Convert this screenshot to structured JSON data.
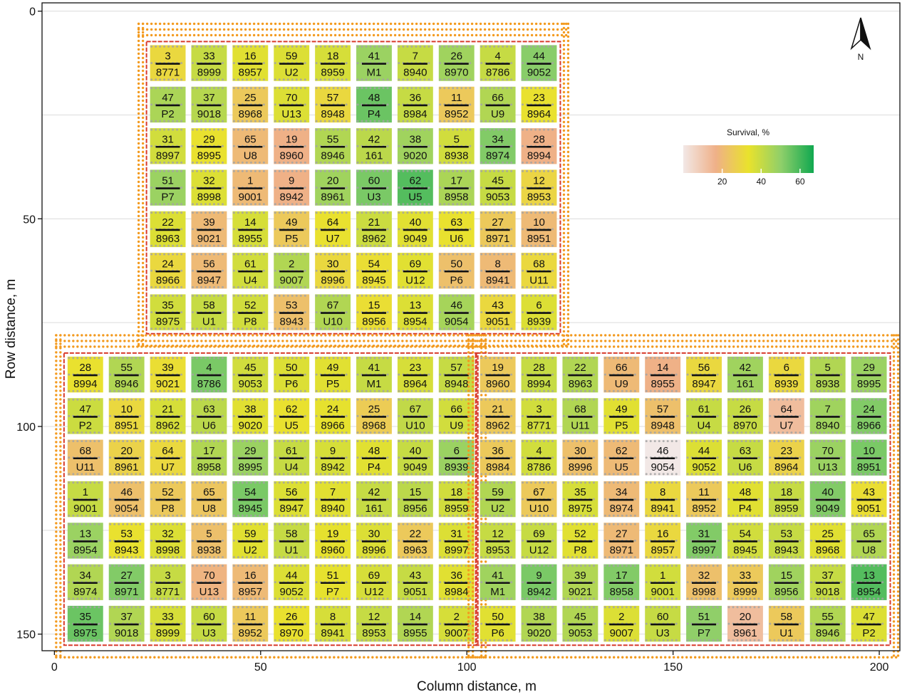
{
  "chart_data": {
    "type": "heatmap",
    "xlabel": "Column distance, m",
    "ylabel": "Row distance, m",
    "xlim": [
      -3,
      205
    ],
    "ylim": [
      -2,
      154
    ],
    "x_ticks": [
      0,
      50,
      100,
      150,
      200
    ],
    "y_ticks": [
      0,
      50,
      100,
      150
    ],
    "grid": true,
    "north_arrow_label": "N",
    "legend": {
      "title": "Survival, %",
      "ticks": [
        20,
        40,
        60
      ],
      "range": [
        0,
        67
      ],
      "placement": "top-right",
      "colors": [
        "#f2e8e6",
        "#efb088",
        "#e9e22c",
        "#8fcf6a",
        "#10a850"
      ]
    },
    "borders": {
      "guard_dots": "#f39a1e",
      "plot_line": "#d83a2a",
      "block_dots": "#a5a5a5",
      "number_rule": "#111111"
    },
    "blocks": [
      {
        "col_start": 22.5,
        "row_start": 7.5,
        "cell_w": 10,
        "cell_h": 10,
        "rows": [
          [
            [
              3,
              "8771",
              30
            ],
            [
              33,
              "8999",
              40
            ],
            [
              16,
              "8957",
              35
            ],
            [
              59,
              "U2",
              36
            ],
            [
              18,
              "8959",
              37
            ],
            [
              41,
              "M1",
              48
            ],
            [
              7,
              "8940",
              40
            ],
            [
              26,
              "8970",
              47
            ],
            [
              4,
              "8786",
              40
            ],
            [
              44,
              "9052",
              51
            ]
          ],
          [
            [
              47,
              "P2",
              45
            ],
            [
              37,
              "9018",
              43
            ],
            [
              25,
              "8968",
              25
            ],
            [
              70,
              "U13",
              36
            ],
            [
              57,
              "8948",
              30
            ],
            [
              48,
              "P4",
              55
            ],
            [
              36,
              "8984",
              40
            ],
            [
              11,
              "8952",
              25
            ],
            [
              66,
              "U9",
              44
            ],
            [
              23,
              "8964",
              33
            ]
          ],
          [
            [
              31,
              "8997",
              38
            ],
            [
              29,
              "8995",
              33
            ],
            [
              65,
              "U8",
              20
            ],
            [
              19,
              "8960",
              17
            ],
            [
              55,
              "8946",
              44
            ],
            [
              42,
              "161",
              42
            ],
            [
              38,
              "9020",
              47
            ],
            [
              5,
              "8938",
              38
            ],
            [
              34,
              "8974",
              52
            ],
            [
              28,
              "8994",
              17
            ]
          ],
          [
            [
              51,
              "P7",
              48
            ],
            [
              32,
              "8998",
              36
            ],
            [
              1,
              "9001",
              20
            ],
            [
              9,
              "8942",
              17
            ],
            [
              20,
              "8961",
              47
            ],
            [
              60,
              "U3",
              53
            ],
            [
              62,
              "U5",
              58
            ],
            [
              17,
              "8958",
              45
            ],
            [
              45,
              "9053",
              40
            ],
            [
              12,
              "8953",
              29
            ]
          ],
          [
            [
              22,
              "8963",
              36
            ],
            [
              39,
              "9021",
              20
            ],
            [
              14,
              "8955",
              37
            ],
            [
              49,
              "P5",
              25
            ],
            [
              64,
              "U7",
              33
            ],
            [
              21,
              "8962",
              39
            ],
            [
              40,
              "9049",
              35
            ],
            [
              63,
              "U6",
              33
            ],
            [
              27,
              "8971",
              25
            ],
            [
              10,
              "8951",
              20
            ]
          ],
          [
            [
              24,
              "8966",
              30
            ],
            [
              56,
              "8947",
              20
            ],
            [
              61,
              "U4",
              38
            ],
            [
              2,
              "9007",
              44
            ],
            [
              30,
              "8996",
              30
            ],
            [
              54,
              "8945",
              32
            ],
            [
              69,
              "U12",
              35
            ],
            [
              50,
              "P6",
              22
            ],
            [
              8,
              "8941",
              20
            ],
            [
              68,
              "U11",
              30
            ]
          ],
          [
            [
              35,
              "8975",
              38
            ],
            [
              58,
              "U1",
              40
            ],
            [
              52,
              "P8",
              38
            ],
            [
              53,
              "8943",
              22
            ],
            [
              67,
              "U10",
              44
            ],
            [
              15,
              "8956",
              32
            ],
            [
              13,
              "8954",
              36
            ],
            [
              46,
              "9054",
              46
            ],
            [
              43,
              "9051",
              30
            ],
            [
              6,
              "8939",
              36
            ]
          ]
        ]
      },
      {
        "col_start": 2.5,
        "row_start": 82.5,
        "cell_w": 10,
        "cell_h": 10,
        "rows": [
          [
            [
              28,
              "8994",
              33
            ],
            [
              55,
              "8946",
              44
            ],
            [
              39,
              "9021",
              32
            ],
            [
              4,
              "8786",
              53
            ],
            [
              45,
              "9053",
              38
            ],
            [
              50,
              "P6",
              36
            ],
            [
              49,
              "P5",
              35
            ],
            [
              41,
              "M1",
              40
            ],
            [
              23,
              "8964",
              37
            ],
            [
              57,
              "8948",
              40
            ]
          ],
          [
            [
              47,
              "P2",
              39
            ],
            [
              10,
              "8951",
              30
            ],
            [
              21,
              "8962",
              37
            ],
            [
              63,
              "U6",
              42
            ],
            [
              38,
              "9020",
              35
            ],
            [
              62,
              "U5",
              33
            ],
            [
              24,
              "8966",
              34
            ],
            [
              25,
              "8968",
              26
            ],
            [
              67,
              "U10",
              41
            ],
            [
              66,
              "U9",
              38
            ]
          ],
          [
            [
              68,
              "U11",
              22
            ],
            [
              20,
              "8961",
              28
            ],
            [
              64,
              "U7",
              30
            ],
            [
              17,
              "8958",
              44
            ],
            [
              29,
              "8995",
              48
            ],
            [
              61,
              "U4",
              40
            ],
            [
              9,
              "8942",
              37
            ],
            [
              48,
              "P4",
              35
            ],
            [
              40,
              "9049",
              40
            ],
            [
              6,
              "8939",
              48
            ]
          ],
          [
            [
              1,
              "9001",
              40
            ],
            [
              46,
              "9054",
              22
            ],
            [
              52,
              "P8",
              25
            ],
            [
              65,
              "U8",
              24
            ],
            [
              54,
              "8945",
              53
            ],
            [
              56,
              "8947",
              36
            ],
            [
              7,
              "8940",
              35
            ],
            [
              42,
              "161",
              40
            ],
            [
              15,
              "8956",
              42
            ],
            [
              18,
              "8959",
              38
            ]
          ],
          [
            [
              13,
              "8954",
              48
            ],
            [
              53,
              "8943",
              33
            ],
            [
              32,
              "8998",
              36
            ],
            [
              5,
              "8938",
              22
            ],
            [
              59,
              "U2",
              35
            ],
            [
              58,
              "U1",
              40
            ],
            [
              19,
              "8960",
              34
            ],
            [
              30,
              "8996",
              36
            ],
            [
              22,
              "8963",
              25
            ],
            [
              31,
              "8997",
              36
            ]
          ],
          [
            [
              34,
              "8974",
              44
            ],
            [
              27,
              "8971",
              52
            ],
            [
              3,
              "8771",
              40
            ],
            [
              70,
              "U13",
              18
            ],
            [
              16,
              "8957",
              20
            ],
            [
              44,
              "9052",
              36
            ],
            [
              51,
              "P7",
              34
            ],
            [
              69,
              "U12",
              37
            ],
            [
              43,
              "9051",
              40
            ],
            [
              36,
              "8984",
              35
            ]
          ],
          [
            [
              35,
              "8975",
              55
            ],
            [
              37,
              "9018",
              44
            ],
            [
              33,
              "8999",
              37
            ],
            [
              60,
              "U3",
              40
            ],
            [
              11,
              "8952",
              25
            ],
            [
              26,
              "8970",
              33
            ],
            [
              8,
              "8941",
              37
            ],
            [
              12,
              "8953",
              40
            ],
            [
              14,
              "8955",
              44
            ],
            [
              2,
              "9007",
              37
            ]
          ]
        ]
      },
      {
        "col_start": 102.5,
        "row_start": 82.5,
        "cell_w": 10,
        "cell_h": 10,
        "rows": [
          [
            [
              19,
              "8960",
              25
            ],
            [
              28,
              "8994",
              40
            ],
            [
              22,
              "8963",
              44
            ],
            [
              66,
              "U9",
              20
            ],
            [
              14,
              "8955",
              17
            ],
            [
              56,
              "8947",
              30
            ],
            [
              42,
              "161",
              47
            ],
            [
              6,
              "8939",
              30
            ],
            [
              5,
              "8938",
              44
            ],
            [
              29,
              "8995",
              48
            ]
          ],
          [
            [
              21,
              "8962",
              25
            ],
            [
              3,
              "8771",
              38
            ],
            [
              68,
              "U11",
              44
            ],
            [
              49,
              "P5",
              35
            ],
            [
              57,
              "8948",
              22
            ],
            [
              61,
              "U4",
              40
            ],
            [
              26,
              "8970",
              40
            ],
            [
              64,
              "U7",
              13
            ],
            [
              7,
              "8940",
              47
            ],
            [
              24,
              "8966",
              52
            ]
          ],
          [
            [
              36,
              "8984",
              25
            ],
            [
              4,
              "8786",
              38
            ],
            [
              30,
              "8996",
              22
            ],
            [
              62,
              "U5",
              20
            ],
            [
              46,
              "9054",
              0
            ],
            [
              44,
              "9052",
              36
            ],
            [
              63,
              "U6",
              40
            ],
            [
              23,
              "8964",
              28
            ],
            [
              70,
              "U13",
              48
            ],
            [
              10,
              "8951",
              53
            ]
          ],
          [
            [
              59,
              "U2",
              44
            ],
            [
              67,
              "U10",
              25
            ],
            [
              35,
              "8975",
              37
            ],
            [
              34,
              "8974",
              20
            ],
            [
              8,
              "8941",
              30
            ],
            [
              11,
              "8952",
              25
            ],
            [
              48,
              "P4",
              35
            ],
            [
              18,
              "8959",
              40
            ],
            [
              40,
              "9049",
              52
            ],
            [
              43,
              "9051",
              32
            ]
          ],
          [
            [
              12,
              "8953",
              40
            ],
            [
              69,
              "U12",
              40
            ],
            [
              52,
              "P8",
              35
            ],
            [
              27,
              "8971",
              20
            ],
            [
              16,
              "8957",
              30
            ],
            [
              31,
              "8997",
              52
            ],
            [
              54,
              "8945",
              38
            ],
            [
              53,
              "8943",
              40
            ],
            [
              25,
              "8968",
              35
            ],
            [
              65,
              "U8",
              44
            ]
          ],
          [
            [
              41,
              "M1",
              47
            ],
            [
              9,
              "8942",
              53
            ],
            [
              39,
              "9021",
              44
            ],
            [
              17,
              "8958",
              52
            ],
            [
              1,
              "9001",
              38
            ],
            [
              32,
              "8998",
              22
            ],
            [
              33,
              "8999",
              25
            ],
            [
              15,
              "8956",
              47
            ],
            [
              37,
              "9018",
              40
            ],
            [
              13,
              "8954",
              58
            ]
          ],
          [
            [
              50,
              "P6",
              35
            ],
            [
              38,
              "9020",
              44
            ],
            [
              45,
              "9053",
              44
            ],
            [
              2,
              "9007",
              36
            ],
            [
              60,
              "U3",
              40
            ],
            [
              51,
              "P7",
              50
            ],
            [
              20,
              "8961",
              13
            ],
            [
              58,
              "U1",
              25
            ],
            [
              55,
              "8946",
              44
            ],
            [
              47,
              "P2",
              36
            ]
          ]
        ]
      }
    ]
  }
}
